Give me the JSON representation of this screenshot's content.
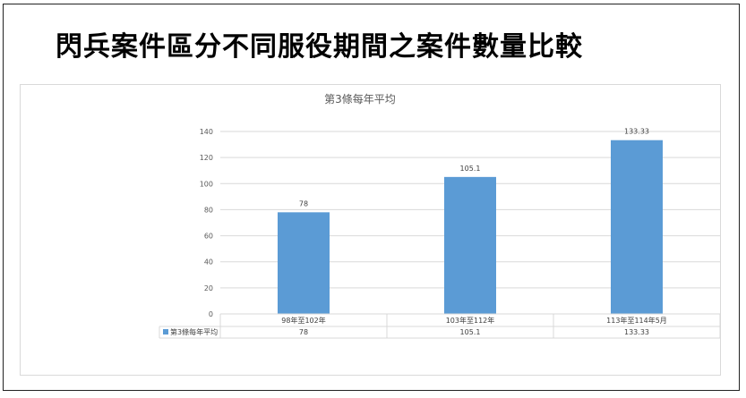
{
  "slide": {
    "title": "閃兵案件區分不同服役期間之案件數量比較"
  },
  "chart_data": {
    "type": "bar",
    "title": "第3條每年平均",
    "categories": [
      "98年至102年",
      "103年至112年",
      "113年至114年5月"
    ],
    "series": [
      {
        "name": "第3條每年平均",
        "values": [
          78,
          105.1,
          133.33
        ],
        "value_labels": [
          "78",
          "105.1",
          "133.33"
        ],
        "color": "#5b9bd5"
      }
    ],
    "ylim": [
      0,
      140
    ],
    "yticks": [
      0,
      20,
      40,
      60,
      80,
      100,
      120,
      140
    ],
    "grid": true,
    "data_table": true,
    "xlabel": "",
    "ylabel": ""
  }
}
